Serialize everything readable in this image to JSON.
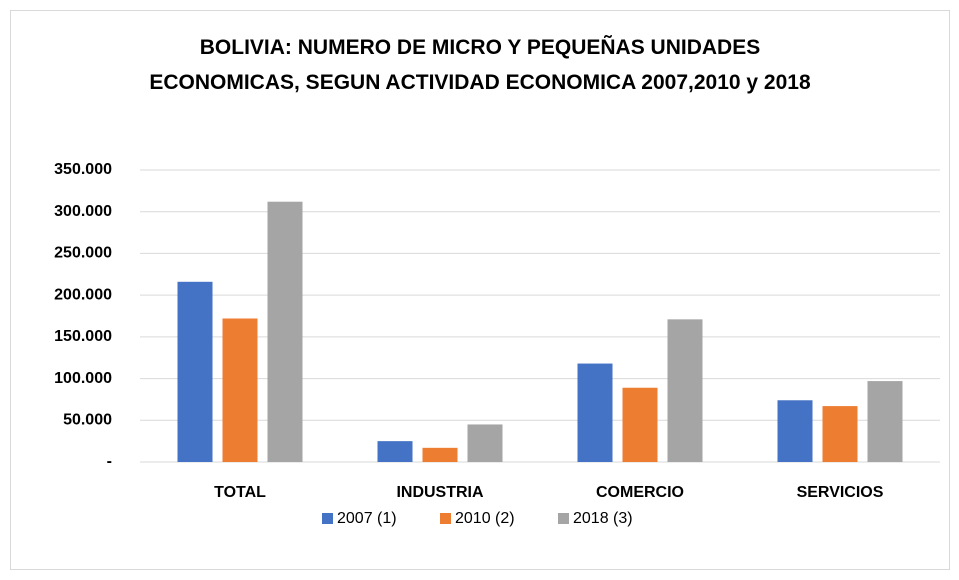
{
  "chart_data": {
    "type": "bar",
    "title": "BOLIVIA: NUMERO DE MICRO Y PEQUEÑAS UNIDADES ECONOMICAS, SEGUN ACTIVIDAD ECONOMICA 2007,2010 y 2018",
    "categories": [
      "TOTAL",
      "INDUSTRIA",
      "COMERCIO",
      "SERVICIOS"
    ],
    "series": [
      {
        "name": "2007 (1)",
        "color": "#4472c4",
        "values": [
          216000,
          25000,
          118000,
          74000
        ]
      },
      {
        "name": "2010 (2)",
        "color": "#ed7d31",
        "values": [
          172000,
          17000,
          89000,
          67000
        ]
      },
      {
        "name": "2018 (3)",
        "color": "#a5a5a5",
        "values": [
          312000,
          45000,
          171000,
          97000
        ]
      }
    ],
    "ylim": [
      0,
      350000
    ],
    "yticks": [
      {
        "value": 0,
        "label": "-"
      },
      {
        "value": 50000,
        "label": "50.000"
      },
      {
        "value": 100000,
        "label": "100.000"
      },
      {
        "value": 150000,
        "label": "150.000"
      },
      {
        "value": 200000,
        "label": "200.000"
      },
      {
        "value": 250000,
        "label": "250.000"
      },
      {
        "value": 300000,
        "label": "300.000"
      },
      {
        "value": 350000,
        "label": "350.000"
      }
    ],
    "grid": true,
    "legend": "bottom"
  }
}
